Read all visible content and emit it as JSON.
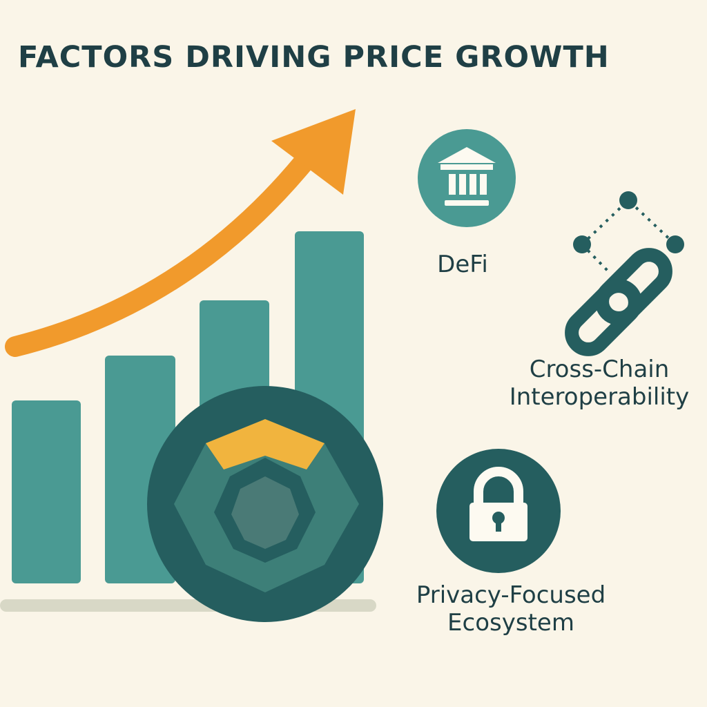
{
  "title": "FACTORS DRIVING PRICE GROWTH",
  "factors": {
    "defi": {
      "label": "DeFi",
      "icon": "bank-building-icon"
    },
    "cross_chain": {
      "line1": "Cross-Chain",
      "line2": "Interoperability",
      "icon": "chain-link-icon"
    },
    "privacy": {
      "line1": "Privacy-Focused",
      "line2": "Ecosystem",
      "icon": "padlock-icon"
    }
  },
  "colors": {
    "background": "#faf5e8",
    "teal": "#4a9a93",
    "dark_teal": "#255e5f",
    "orange": "#f19a2c",
    "gold": "#f1b43e",
    "text": "#1f3f45"
  }
}
